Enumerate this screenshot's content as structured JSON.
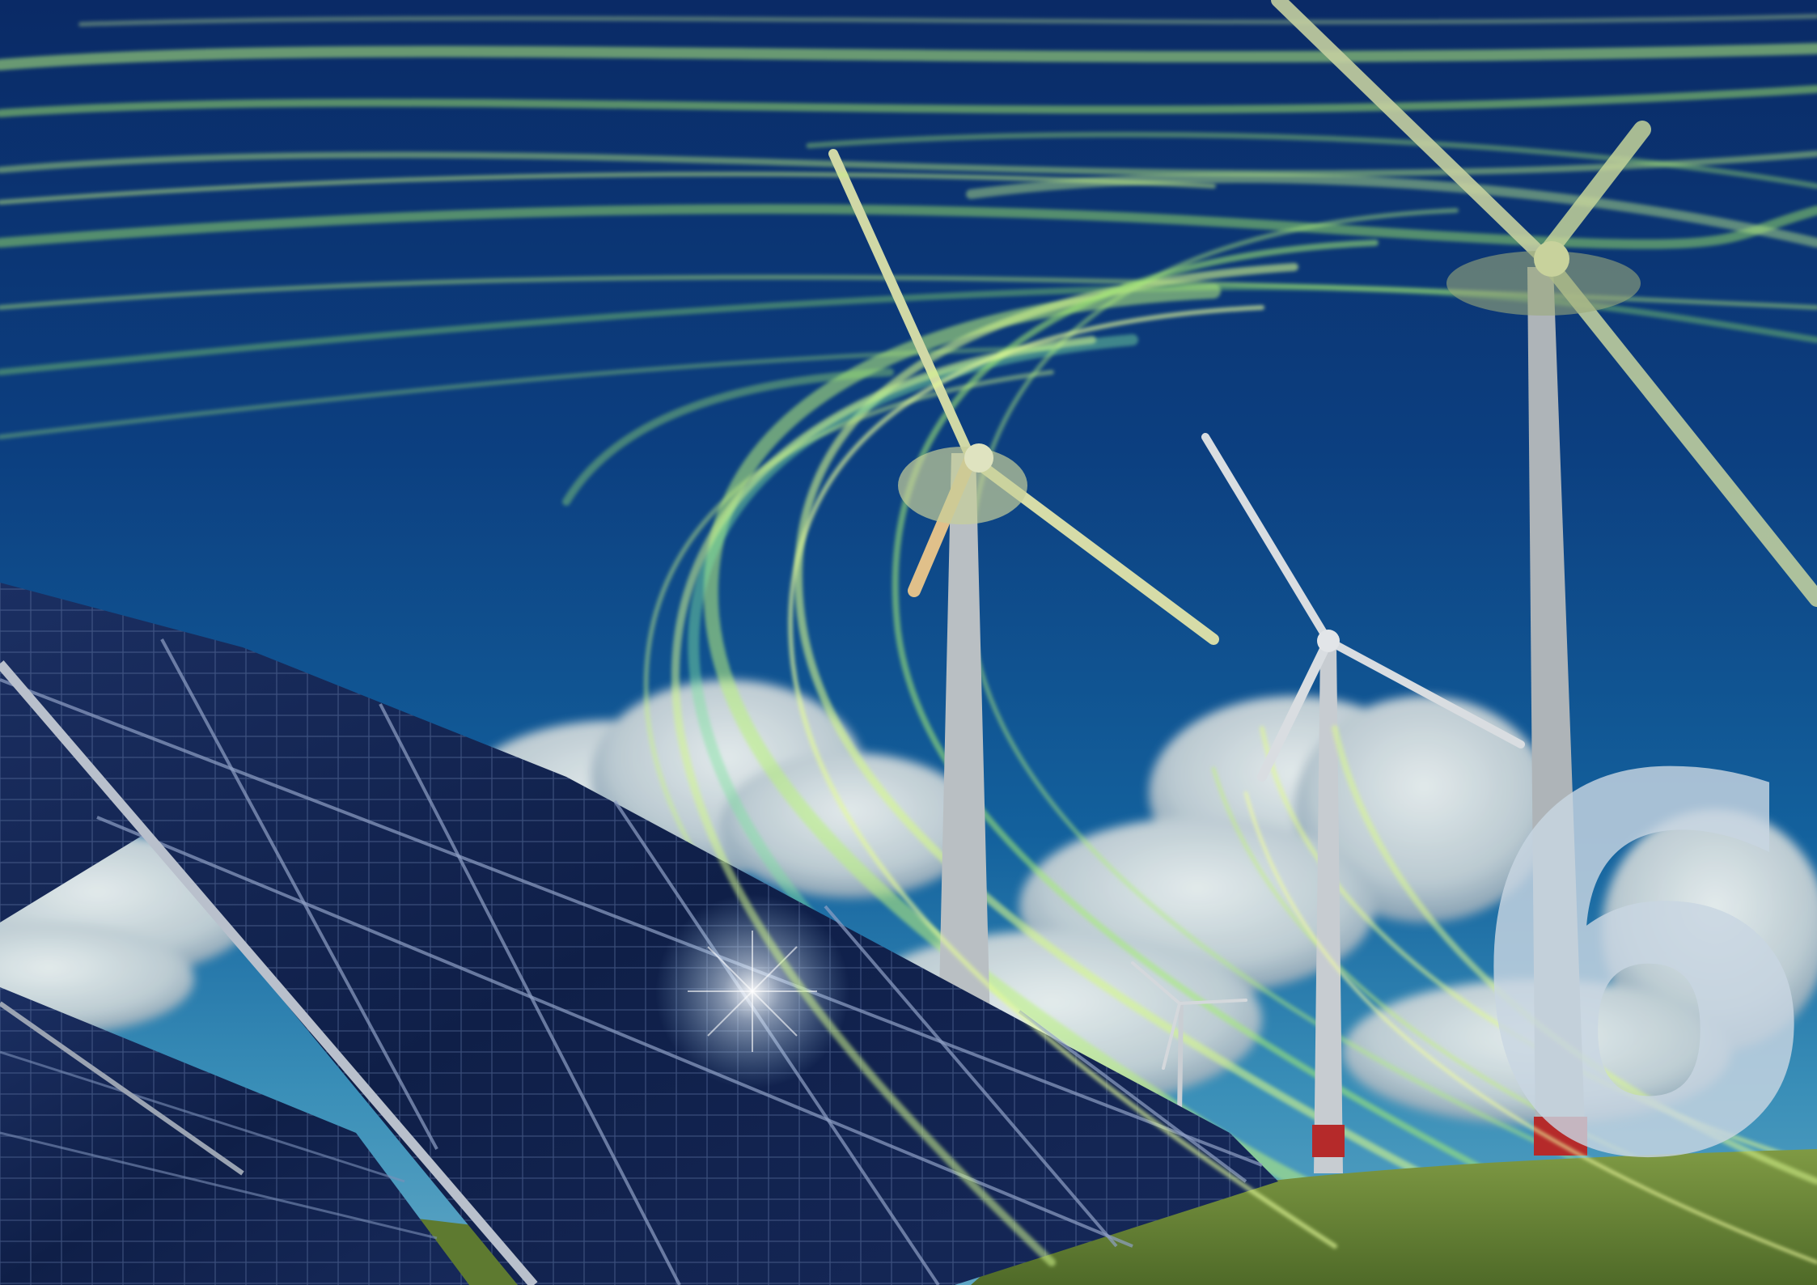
{
  "chapter_number": "6",
  "colors": {
    "sky_top": "#0b2e6c",
    "sky_mid": "#0d4a86",
    "sky_horizon": "#2f86b3",
    "wind_streak": "#a8f06a",
    "wind_streak_alt": "#5fe3a0",
    "panel": "#10214a",
    "panel_grid": "#5b6f98",
    "frame": "#b9c0cc",
    "grass": "#6f8a3a",
    "turbine": "#c9ced3",
    "turbine_base": "#b52a2a",
    "number": "#c8d6e2"
  },
  "icons": [
    "wind-turbine-icon",
    "solar-panel-icon"
  ]
}
